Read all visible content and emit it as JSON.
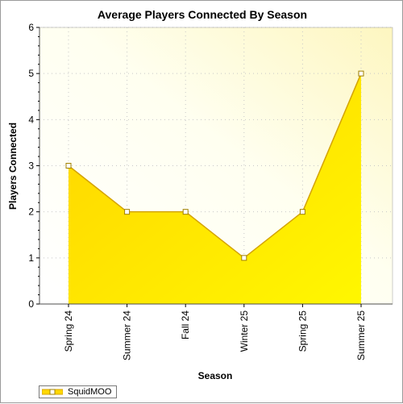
{
  "chart_data": {
    "type": "area",
    "title": "Average Players Connected By Season",
    "xlabel": "Season",
    "ylabel": "Players Connected",
    "categories": [
      "Spring 24",
      "Summer 24",
      "Fall 24",
      "Winter 25",
      "Spring 25",
      "Summer 25"
    ],
    "series": [
      {
        "name": "SquidMOO",
        "values": [
          3,
          2,
          2,
          1,
          2,
          5
        ]
      }
    ],
    "ylim": [
      0,
      6
    ],
    "yticks": [
      "0",
      "1",
      "2",
      "3",
      "4",
      "5",
      "6"
    ],
    "grid": true,
    "legend_position": "bottom-left",
    "colors": {
      "fill_top": "#ffd800",
      "fill_bottom": "#fff600",
      "line": "#d4a300",
      "plot_bg_light": "#fffff4",
      "plot_bg_warm": "#fefac8"
    }
  }
}
